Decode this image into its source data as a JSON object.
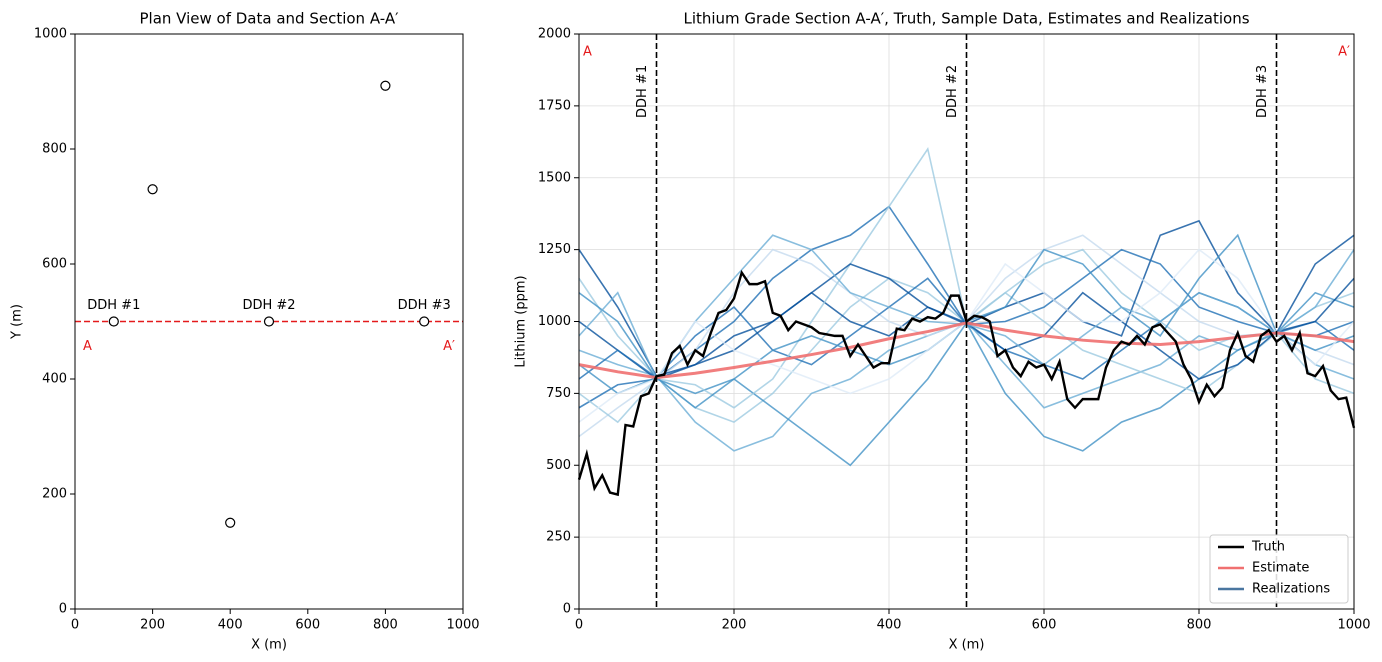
{
  "chart_data": [
    {
      "type": "scatter",
      "title": "Plan View of Data and Section A-A′",
      "xlabel": "X (m)",
      "ylabel": "Y (m)",
      "x": [
        100,
        200,
        400,
        500,
        800,
        900
      ],
      "values": [
        500,
        730,
        150,
        500,
        910,
        500
      ],
      "marker_color": "#000000",
      "xlim": [
        0,
        1000
      ],
      "ylim": [
        0,
        1000
      ],
      "xticks": [
        0,
        200,
        400,
        600,
        800,
        1000
      ],
      "yticks": [
        0,
        200,
        400,
        600,
        800,
        1000
      ],
      "annotations": [
        {
          "text": "DDH #1",
          "x": 100,
          "y": 500
        },
        {
          "text": "DDH #2",
          "x": 500,
          "y": 500
        },
        {
          "text": "DDH #3",
          "x": 900,
          "y": 500
        }
      ],
      "section": {
        "y": 500,
        "color": "#e41a1c",
        "start_label": "A",
        "end_label": "A′"
      }
    },
    {
      "type": "line",
      "title": "Lithium Grade Section A-A′, Truth, Sample Data, Estimates and Realizations",
      "xlabel": "X (m)",
      "ylabel": "Lithium (ppm)",
      "xlim": [
        0,
        1000
      ],
      "ylim": [
        0,
        2000
      ],
      "xticks": [
        0,
        200,
        400,
        600,
        800,
        1000
      ],
      "yticks": [
        0,
        250,
        500,
        750,
        1000,
        1250,
        1500,
        1750,
        2000
      ],
      "grid": true,
      "legend": "lower right",
      "series": [
        {
          "name": "Truth",
          "color": "#000000",
          "x": [
            0,
            10,
            20,
            30,
            40,
            50,
            60,
            70,
            80,
            90,
            100,
            110,
            120,
            130,
            140,
            150,
            160,
            170,
            180,
            190,
            200,
            210,
            220,
            230,
            240,
            250,
            260,
            270,
            280,
            290,
            300,
            310,
            320,
            330,
            340,
            350,
            360,
            370,
            380,
            390,
            400,
            410,
            420,
            430,
            440,
            450,
            460,
            470,
            480,
            490,
            500,
            510,
            520,
            530,
            540,
            550,
            560,
            570,
            580,
            590,
            600,
            610,
            620,
            630,
            640,
            650,
            660,
            670,
            680,
            690,
            700,
            710,
            720,
            730,
            740,
            750,
            760,
            770,
            780,
            790,
            800,
            810,
            820,
            830,
            840,
            850,
            860,
            870,
            880,
            890,
            900,
            910,
            920,
            930,
            940,
            950,
            960,
            970,
            980,
            990,
            1000
          ],
          "values": [
            450,
            540,
            420,
            465,
            405,
            398,
            640,
            635,
            740,
            750,
            810,
            815,
            890,
            915,
            850,
            900,
            880,
            960,
            1030,
            1040,
            1080,
            1170,
            1130,
            1130,
            1140,
            1030,
            1020,
            970,
            1000,
            990,
            980,
            960,
            955,
            950,
            950,
            880,
            920,
            880,
            840,
            855,
            855,
            975,
            970,
            1010,
            1000,
            1015,
            1010,
            1030,
            1090,
            1090,
            1000,
            1020,
            1015,
            1000,
            880,
            900,
            840,
            810,
            860,
            840,
            850,
            800,
            860,
            730,
            700,
            730,
            730,
            730,
            840,
            900,
            930,
            920,
            950,
            920,
            980,
            990,
            960,
            930,
            850,
            800,
            720,
            780,
            740,
            770,
            900,
            960,
            880,
            860,
            950,
            970,
            930,
            950,
            900,
            960,
            820,
            810,
            845,
            760,
            730,
            735,
            630
          ]
        },
        {
          "name": "Estimate",
          "color": "#f07070",
          "x": [
            0,
            50,
            100,
            150,
            200,
            250,
            300,
            350,
            400,
            450,
            500,
            550,
            600,
            650,
            700,
            750,
            800,
            850,
            900,
            950,
            1000
          ],
          "values": [
            850,
            825,
            805,
            820,
            840,
            862,
            885,
            910,
            940,
            965,
            995,
            970,
            950,
            935,
            925,
            920,
            930,
            945,
            960,
            950,
            930
          ]
        }
      ],
      "realizations": {
        "name": "Realizations",
        "color": "#4a76a0",
        "x": [
          0,
          50,
          100,
          150,
          200,
          250,
          300,
          350,
          400,
          450,
          500,
          550,
          600,
          650,
          700,
          750,
          800,
          850,
          900,
          950,
          1000
        ],
        "colors": [
          "#9ecae1",
          "#2171b5",
          "#6baed6",
          "#08519c",
          "#c6dbef",
          "#4292c6",
          "#2171b5",
          "#9ecae1",
          "#08519c",
          "#4292c6",
          "#6baed6",
          "#deebf7"
        ],
        "values": [
          [
            1150,
            950,
            805,
            700,
            650,
            750,
            900,
            1050,
            1150,
            1100,
            995,
            1100,
            1200,
            1250,
            1100,
            1000,
            900,
            950,
            960,
            1050,
            1100
          ],
          [
            700,
            780,
            800,
            900,
            1000,
            1150,
            1250,
            1300,
            1400,
            1200,
            990,
            900,
            850,
            800,
            900,
            1000,
            1100,
            1050,
            960,
            1000,
            900
          ],
          [
            900,
            850,
            810,
            650,
            550,
            600,
            750,
            800,
            900,
            950,
            1000,
            850,
            700,
            750,
            800,
            850,
            950,
            900,
            965,
            850,
            800
          ],
          [
            1000,
            900,
            800,
            850,
            950,
            1000,
            1100,
            1000,
            950,
            1050,
            990,
            1050,
            1100,
            1000,
            950,
            1300,
            1350,
            1100,
            960,
            1200,
            1300
          ],
          [
            600,
            700,
            795,
            900,
            1100,
            1250,
            1200,
            1100,
            1000,
            950,
            1000,
            1150,
            1250,
            1300,
            1200,
            1100,
            1000,
            950,
            955,
            900,
            850
          ],
          [
            1100,
            1000,
            800,
            750,
            800,
            700,
            600,
            500,
            650,
            800,
            995,
            750,
            600,
            550,
            650,
            700,
            800,
            900,
            960,
            1100,
            1050
          ],
          [
            800,
            900,
            805,
            950,
            1050,
            900,
            850,
            950,
            1050,
            1150,
            990,
            1000,
            1050,
            1150,
            1250,
            1200,
            1050,
            1000,
            960,
            950,
            1000
          ],
          [
            750,
            650,
            800,
            780,
            700,
            800,
            1000,
            1200,
            1400,
            1600,
            1000,
            1100,
            1000,
            900,
            850,
            800,
            750,
            850,
            960,
            800,
            750
          ],
          [
            1250,
            1050,
            810,
            850,
            900,
            1000,
            1100,
            1200,
            1150,
            1050,
            995,
            900,
            950,
            1100,
            1000,
            900,
            800,
            850,
            965,
            1000,
            1150
          ],
          [
            850,
            750,
            805,
            700,
            800,
            900,
            950,
            900,
            850,
            900,
            1000,
            1050,
            1250,
            1200,
            1050,
            950,
            1150,
            1300,
            960,
            900,
            950
          ],
          [
            950,
            1100,
            800,
            1000,
            1150,
            1300,
            1250,
            1100,
            1050,
            1000,
            990,
            950,
            850,
            950,
            1050,
            1000,
            1100,
            1050,
            960,
            1050,
            1250
          ],
          [
            650,
            750,
            800,
            1000,
            900,
            850,
            800,
            750,
            800,
            900,
            1000,
            1200,
            1100,
            1000,
            1000,
            1100,
            1250,
            1150,
            960,
            850,
            1000
          ]
        ]
      },
      "drillholes": {
        "x": [
          100,
          500,
          900
        ],
        "labels": [
          "DDH #1",
          "DDH #2",
          "DDH #3"
        ]
      },
      "section_labels": {
        "color": "#e41a1c",
        "start": "A",
        "end": "A′"
      }
    }
  ]
}
